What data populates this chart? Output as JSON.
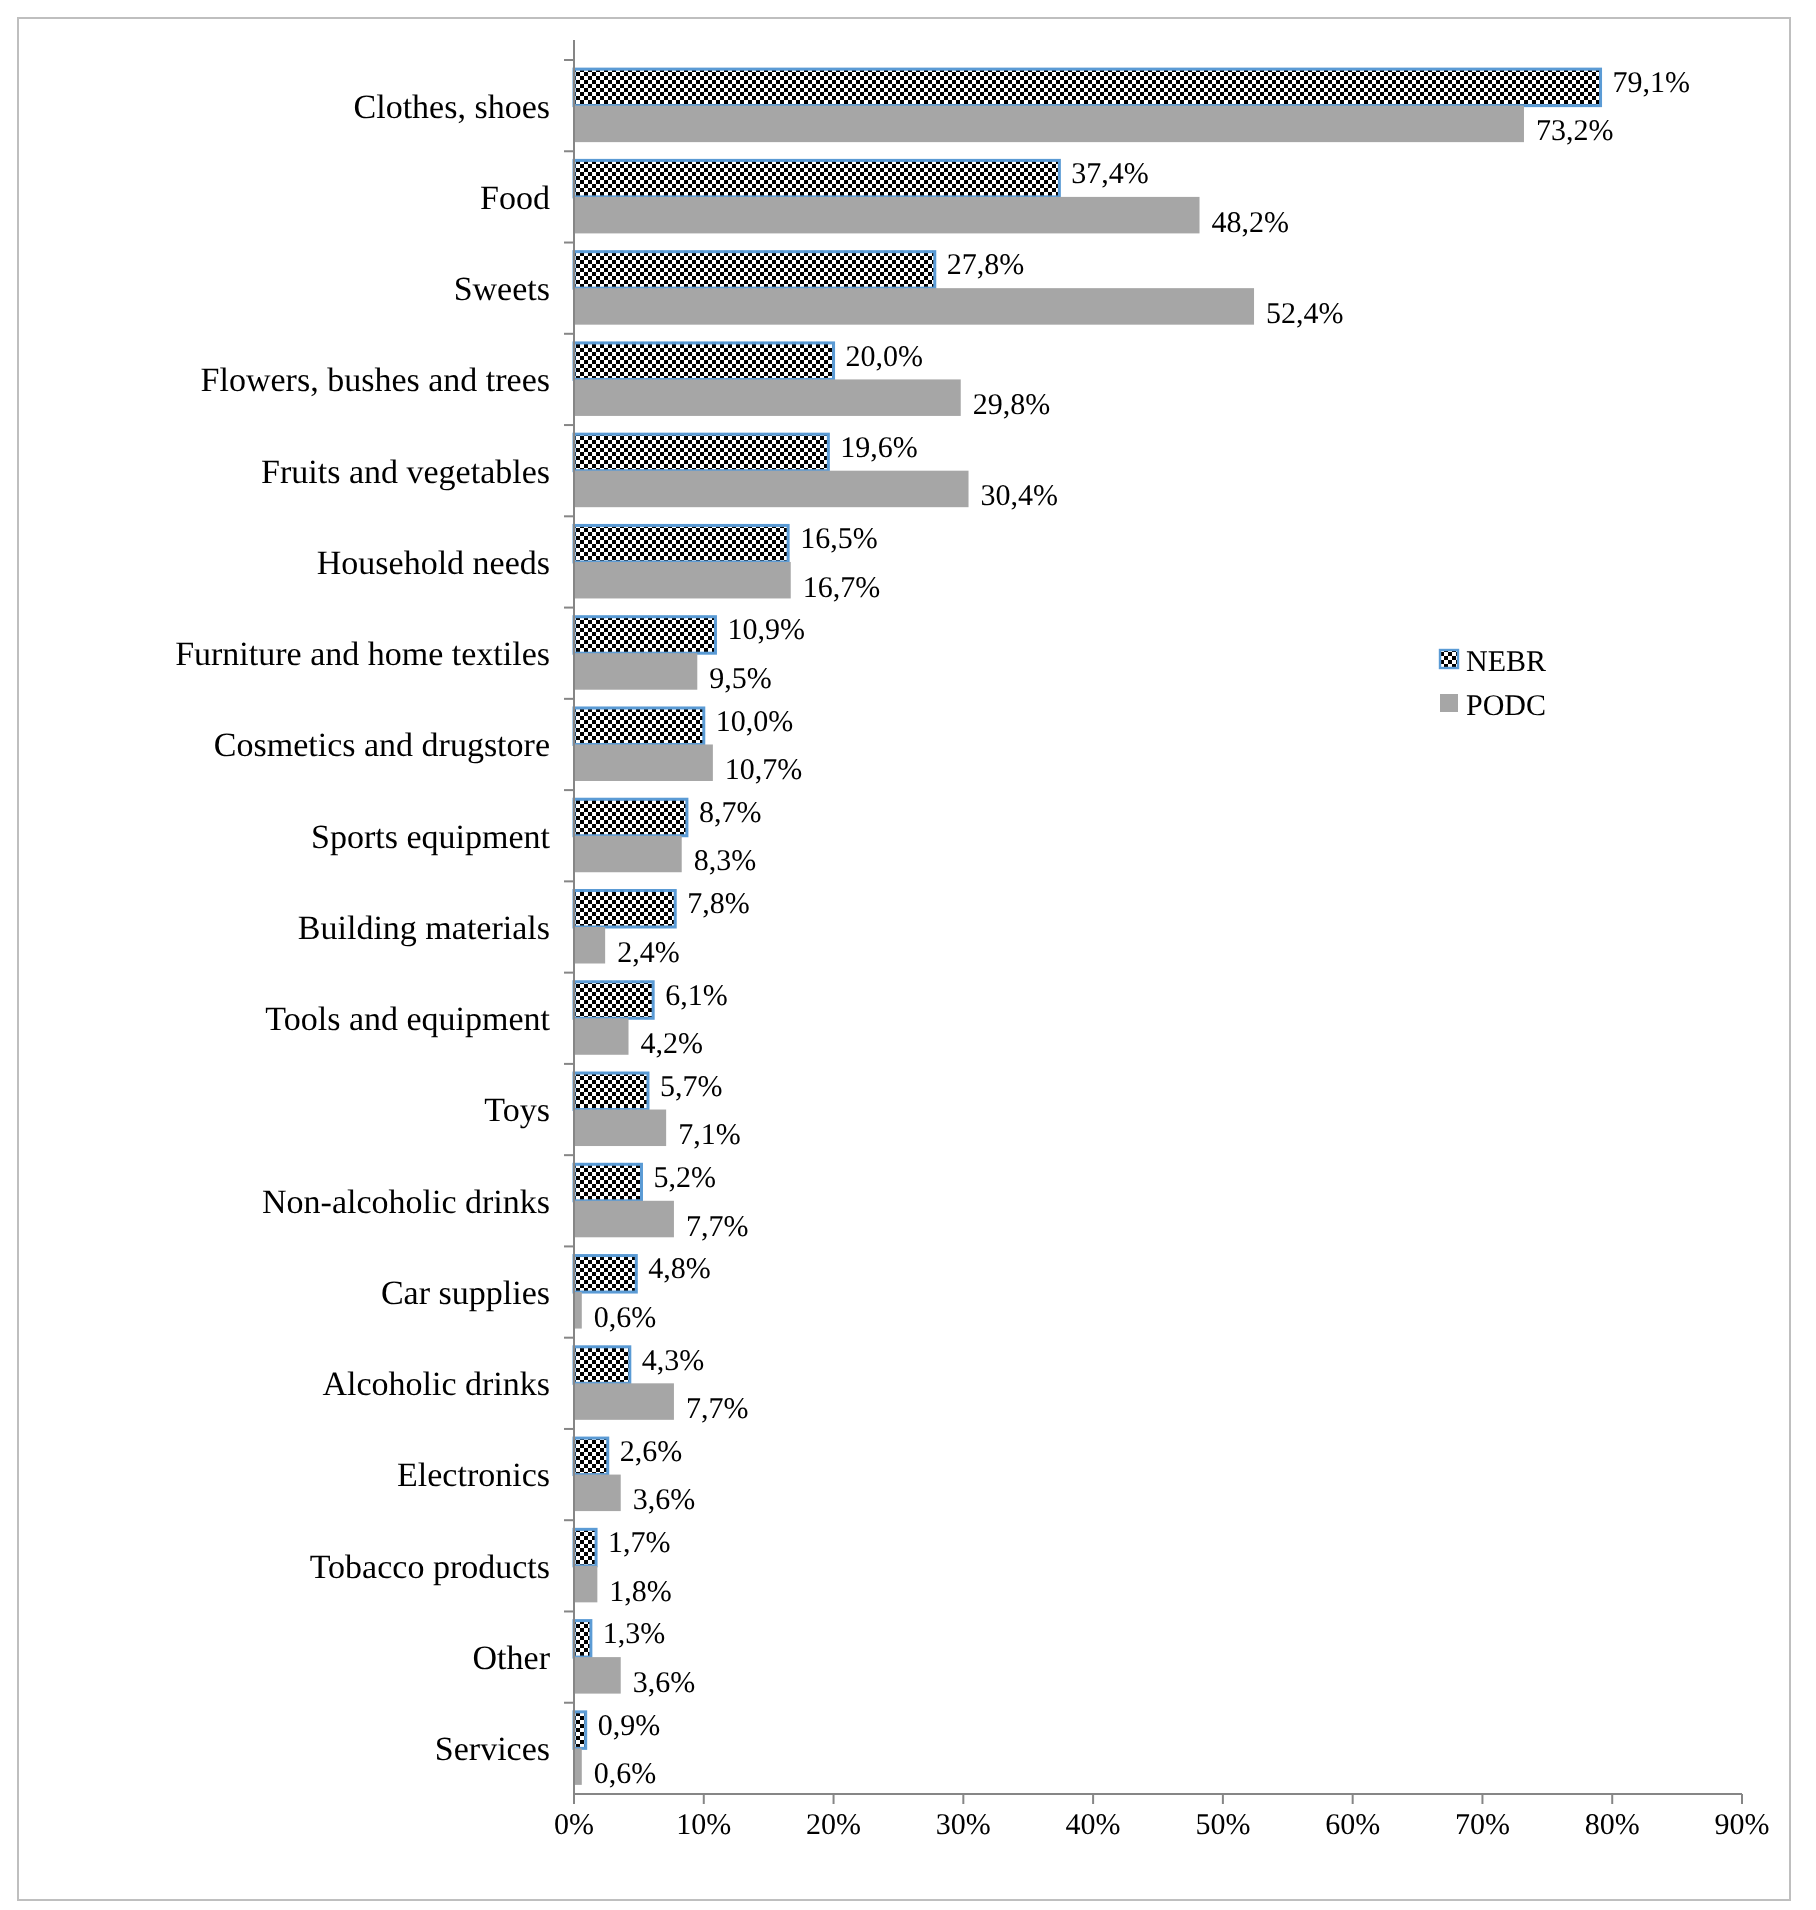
{
  "chart_data": {
    "type": "bar",
    "orientation": "horizontal",
    "categories": [
      "Clothes, shoes",
      "Food",
      "Sweets",
      "Flowers, bushes and trees",
      "Fruits and vegetables",
      "Household needs",
      "Furniture and home textiles",
      "Cosmetics and drugstore",
      "Sports equipment",
      "Building materials",
      "Tools and equipment",
      "Toys",
      "Non-alcoholic drinks",
      "Car supplies",
      "Alcoholic drinks",
      "Electronics",
      "Tobacco products",
      "Other",
      "Services"
    ],
    "series": [
      {
        "name": "NEBR",
        "color": "#5b9bd5",
        "values": [
          79.1,
          37.4,
          27.8,
          20.0,
          19.6,
          16.5,
          10.9,
          10.0,
          8.7,
          7.8,
          6.1,
          5.7,
          5.2,
          4.8,
          4.3,
          2.6,
          1.7,
          1.3,
          0.9
        ],
        "value_labels": [
          "79,1%",
          "37,4%",
          "27,8%",
          "20,0%",
          "19,6%",
          "16,5%",
          "10,9%",
          "10,0%",
          "8,7%",
          "7,8%",
          "6,1%",
          "5,7%",
          "5,2%",
          "4,8%",
          "4,3%",
          "2,6%",
          "1,7%",
          "1,3%",
          "0,9%"
        ]
      },
      {
        "name": "PODC",
        "color": "#a6a6a6",
        "values": [
          73.2,
          48.2,
          52.4,
          29.8,
          30.4,
          16.7,
          9.5,
          10.7,
          8.3,
          2.4,
          4.2,
          7.1,
          7.7,
          0.6,
          7.7,
          3.6,
          1.8,
          3.6,
          0.6
        ],
        "value_labels": [
          "73,2%",
          "48,2%",
          "52,4%",
          "29,8%",
          "30,4%",
          "16,7%",
          "9,5%",
          "10,7%",
          "8,3%",
          "2,4%",
          "4,2%",
          "7,1%",
          "7,7%",
          "0,6%",
          "7,7%",
          "3,6%",
          "1,8%",
          "3,6%",
          "0,6%"
        ]
      }
    ],
    "xlim": [
      0,
      90
    ],
    "xticks": [
      {
        "value": 0,
        "label": "0%"
      },
      {
        "value": 10,
        "label": "10%"
      },
      {
        "value": 20,
        "label": "20%"
      },
      {
        "value": 30,
        "label": "30%"
      },
      {
        "value": 40,
        "label": "40%"
      },
      {
        "value": 50,
        "label": "50%"
      },
      {
        "value": 60,
        "label": "60%"
      },
      {
        "value": 70,
        "label": "70%"
      },
      {
        "value": 80,
        "label": "80%"
      },
      {
        "value": 90,
        "label": "90%"
      }
    ],
    "grid": false,
    "legend": "right"
  }
}
